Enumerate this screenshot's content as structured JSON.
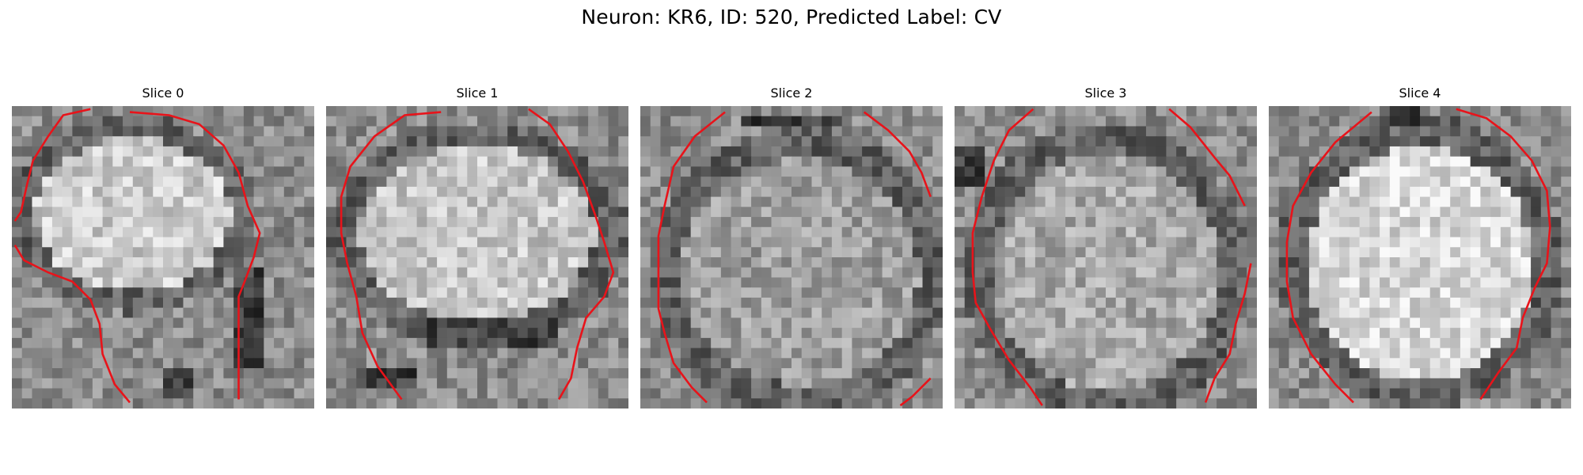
{
  "figure": {
    "title": "Neuron: KR6, ID: 520, Predicted Label: CV"
  },
  "panels": [
    {
      "title": "Slice 0"
    },
    {
      "title": "Slice 1"
    },
    {
      "title": "Slice 2"
    },
    {
      "title": "Slice 3"
    },
    {
      "title": "Slice 4"
    }
  ],
  "colors": {
    "contour": "#e8131a",
    "background": "#ffffff"
  }
}
